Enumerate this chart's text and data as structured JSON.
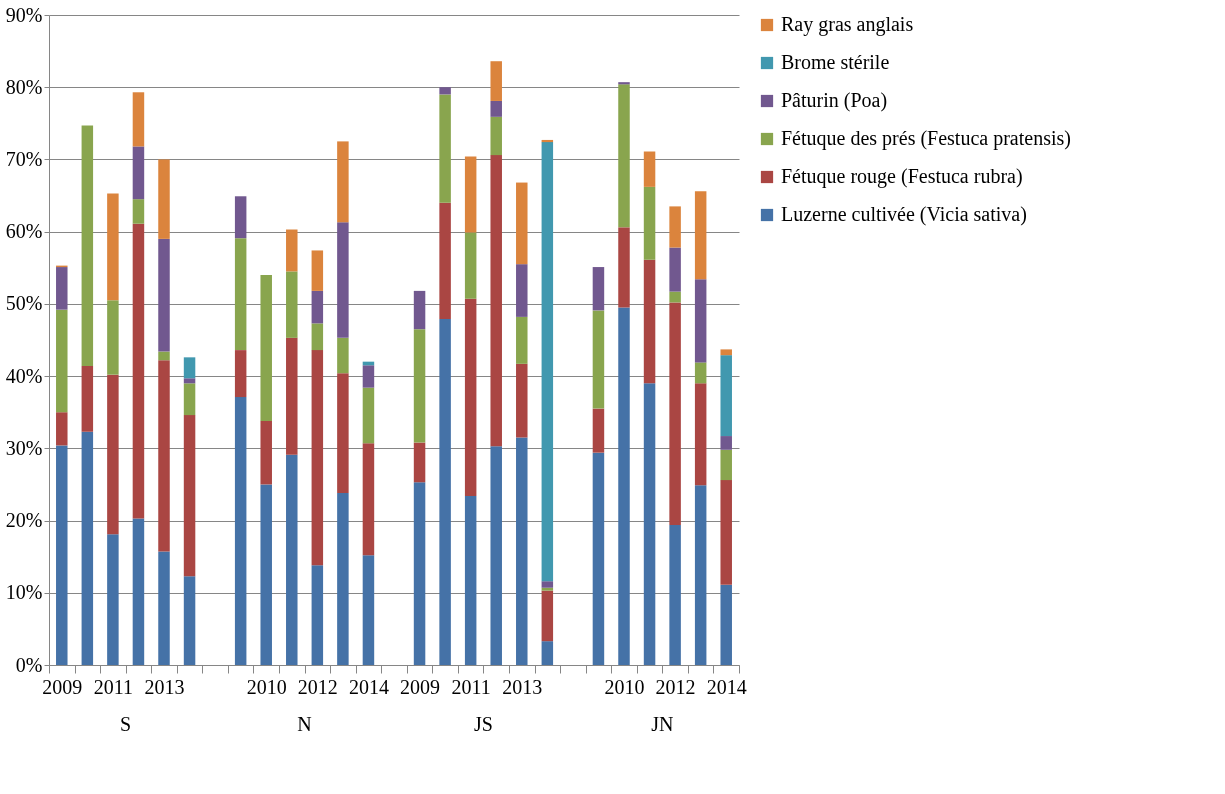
{
  "chart_data": {
    "type": "bar",
    "stacked": true,
    "categories": [
      "2009",
      null,
      "2011",
      null,
      "2013",
      null,
      null,
      null,
      "2010",
      null,
      "2012",
      null,
      "2014",
      null,
      "2009",
      null,
      "2011",
      null,
      "2013",
      null,
      null,
      null,
      "2010",
      null,
      "2012",
      null,
      "2014"
    ],
    "annotations": [
      "S",
      "N",
      "JS",
      "JN"
    ],
    "series": [
      {
        "name": "Luzerne cultivée (Vicia sativa)",
        "color": "#4572a7",
        "values": [
          30.4,
          32.3,
          18.1,
          20.3,
          15.7,
          12.3,
          null,
          37.1,
          25.0,
          29.1,
          13.8,
          23.8,
          15.2,
          null,
          25.3,
          47.9,
          23.4,
          30.3,
          31.5,
          3.3,
          null,
          29.4,
          49.5,
          39.0,
          19.4,
          24.9,
          11.1
        ]
      },
      {
        "name": "Fétuque rouge (Festuca rubra)",
        "color": "#aa4643",
        "values": [
          4.6,
          9.1,
          22.1,
          40.8,
          26.5,
          22.3,
          null,
          6.5,
          8.8,
          16.2,
          29.8,
          16.6,
          15.5,
          null,
          5.5,
          16.1,
          27.3,
          40.3,
          10.2,
          7.0,
          null,
          6.1,
          11.1,
          17.1,
          30.8,
          14.1,
          14.5
        ]
      },
      {
        "name": "Fétuque des prés (Festuca pratensis)",
        "color": "#89a54e",
        "values": [
          14.2,
          33.3,
          10.3,
          3.4,
          1.2,
          4.4,
          null,
          15.5,
          20.2,
          9.2,
          3.7,
          4.9,
          7.7,
          null,
          15.7,
          15.0,
          9.2,
          5.3,
          6.5,
          0.4,
          null,
          13.6,
          19.8,
          10.1,
          1.5,
          2.9,
          4.2
        ]
      },
      {
        "name": "Pâturin (Poa)",
        "color": "#71588f",
        "values": [
          5.9,
          null,
          null,
          7.3,
          15.6,
          0.7,
          null,
          5.8,
          null,
          null,
          4.5,
          16.0,
          3.1,
          null,
          5.3,
          1.0,
          null,
          2.2,
          7.3,
          0.9,
          null,
          6.0,
          0.3,
          null,
          6.1,
          11.5,
          1.9
        ]
      },
      {
        "name": "Brome stérile",
        "color": "#4198af",
        "values": [
          null,
          null,
          null,
          null,
          null,
          2.9,
          null,
          null,
          null,
          null,
          null,
          null,
          0.5,
          null,
          null,
          null,
          null,
          null,
          null,
          60.8,
          null,
          null,
          null,
          null,
          null,
          null,
          11.2
        ]
      },
      {
        "name": "Ray gras anglais",
        "color": "#db843d",
        "values": [
          0.2,
          null,
          14.8,
          7.5,
          11.0,
          null,
          null,
          null,
          null,
          5.8,
          5.6,
          11.2,
          null,
          null,
          null,
          null,
          10.5,
          5.5,
          11.3,
          0.3,
          null,
          null,
          null,
          4.9,
          5.7,
          12.2,
          0.8
        ]
      }
    ],
    "ylim": [
      0,
      90
    ],
    "yticks": [
      {
        "value": 0,
        "label": "0%"
      },
      {
        "value": 10,
        "label": "10%"
      },
      {
        "value": 20,
        "label": "20%"
      },
      {
        "value": 30,
        "label": "30%"
      },
      {
        "value": 40,
        "label": "40%"
      },
      {
        "value": 50,
        "label": "50%"
      },
      {
        "value": 60,
        "label": "60%"
      },
      {
        "value": 70,
        "label": "70%"
      },
      {
        "value": 80,
        "label": "80%"
      },
      {
        "value": 90,
        "label": "90%"
      }
    ],
    "grid": "y",
    "legend": "right"
  }
}
